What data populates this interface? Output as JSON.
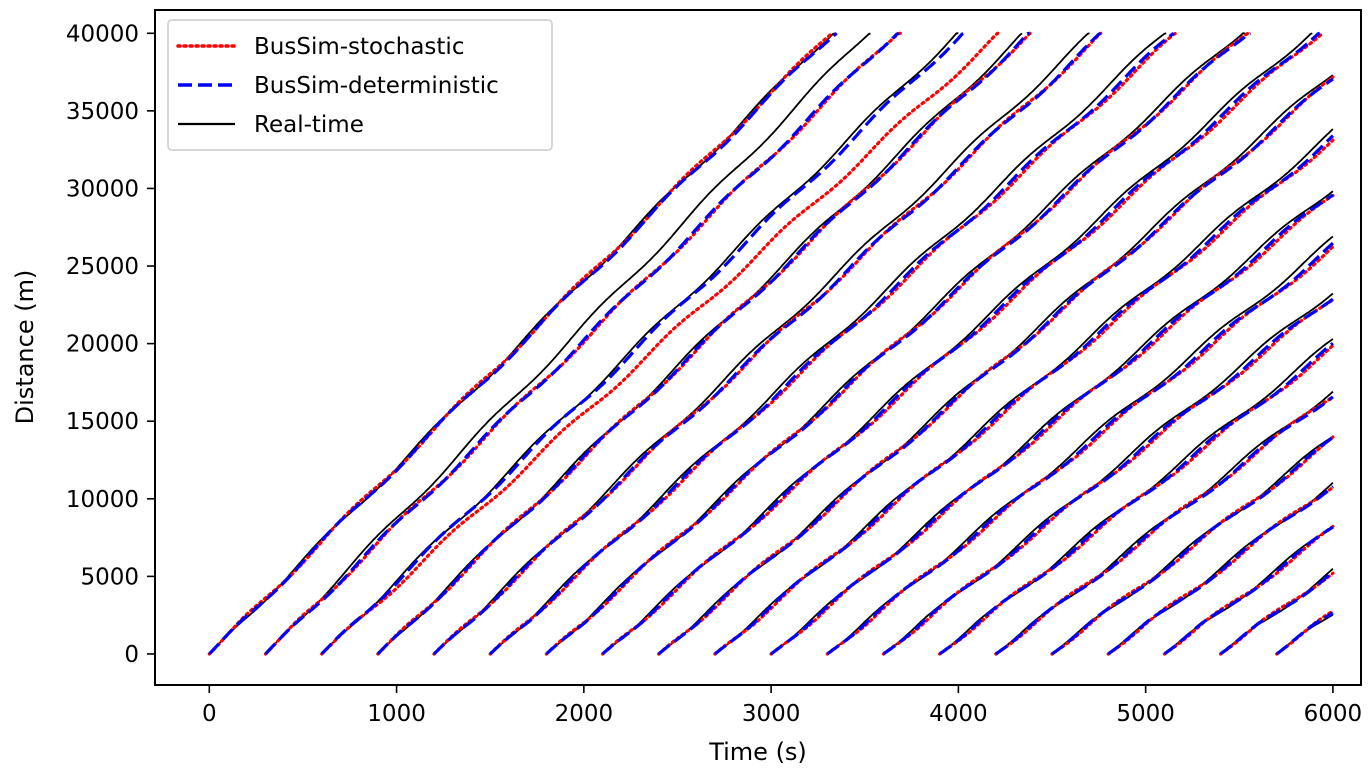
{
  "chart_data": {
    "type": "line",
    "xlabel": "Time (s)",
    "ylabel": "Distance (m)",
    "xlim": [
      -290,
      6150
    ],
    "ylim": [
      -2000,
      41500
    ],
    "x_ticks": [
      0,
      1000,
      2000,
      3000,
      4000,
      5000,
      6000
    ],
    "x_tick_labels": [
      "0",
      "1000",
      "2000",
      "3000",
      "4000",
      "5000",
      "6000"
    ],
    "y_ticks": [
      0,
      5000,
      10000,
      15000,
      20000,
      25000,
      30000,
      35000,
      40000
    ],
    "y_tick_labels": [
      "0",
      "5000",
      "10000",
      "15000",
      "20000",
      "25000",
      "30000",
      "35000",
      "40000"
    ],
    "grid": false,
    "legend_position": "top-left",
    "series": [
      {
        "name": "BusSim-stochastic",
        "color": "#ff0000",
        "style": "dotted",
        "description": "simulated bus trajectories, one line per departure",
        "trips": [
          {
            "start": 0,
            "speed": 12.05
          },
          {
            "start": 300,
            "speed": 11.88
          },
          {
            "start": 600,
            "speed": 11.05
          },
          {
            "start": 900,
            "speed": 11.5
          },
          {
            "start": 1200,
            "speed": 11.2
          },
          {
            "start": 1500,
            "speed": 10.9
          },
          {
            "start": 1800,
            "speed": 10.7
          },
          {
            "start": 2100,
            "speed": 10.45
          },
          {
            "start": 2400,
            "speed": 10.3
          },
          {
            "start": 2700,
            "speed": 10.05
          },
          {
            "start": 3000,
            "speed": 9.85
          },
          {
            "start": 3300,
            "speed": 9.7
          },
          {
            "start": 3600,
            "speed": 9.55
          },
          {
            "start": 3900,
            "speed": 9.4
          },
          {
            "start": 4200,
            "speed": 9.3
          },
          {
            "start": 4500,
            "speed": 9.2
          },
          {
            "start": 4800,
            "speed": 9.1
          },
          {
            "start": 5100,
            "speed": 8.95
          },
          {
            "start": 5400,
            "speed": 8.9
          },
          {
            "start": 5700,
            "speed": 8.9
          }
        ]
      },
      {
        "name": "BusSim-deterministic",
        "color": "#0000ff",
        "style": "dashed",
        "description": "simulated bus trajectories, one line per departure",
        "trips": [
          {
            "start": 0,
            "speed": 12.0
          },
          {
            "start": 300,
            "speed": 11.9
          },
          {
            "start": 600,
            "speed": 11.7
          },
          {
            "start": 900,
            "speed": 11.5
          },
          {
            "start": 1200,
            "speed": 11.2
          },
          {
            "start": 1500,
            "speed": 10.95
          },
          {
            "start": 1800,
            "speed": 10.7
          },
          {
            "start": 2100,
            "speed": 10.5
          },
          {
            "start": 2400,
            "speed": 10.3
          },
          {
            "start": 2700,
            "speed": 10.1
          },
          {
            "start": 3000,
            "speed": 9.9
          },
          {
            "start": 3300,
            "speed": 9.75
          },
          {
            "start": 3600,
            "speed": 9.6
          },
          {
            "start": 3900,
            "speed": 9.45
          },
          {
            "start": 4200,
            "speed": 9.3
          },
          {
            "start": 4500,
            "speed": 9.2
          },
          {
            "start": 4800,
            "speed": 9.1
          },
          {
            "start": 5100,
            "speed": 9.0
          },
          {
            "start": 5400,
            "speed": 8.9
          },
          {
            "start": 5700,
            "speed": 8.9
          }
        ]
      },
      {
        "name": "Real-time",
        "color": "#000000",
        "style": "solid",
        "description": "observed bus trajectories, one line per departure",
        "trips": [
          {
            "start": 0,
            "speed": 12.05
          },
          {
            "start": 300,
            "speed": 12.45
          },
          {
            "start": 600,
            "speed": 11.8
          },
          {
            "start": 900,
            "speed": 11.6
          },
          {
            "start": 1200,
            "speed": 11.4
          },
          {
            "start": 1500,
            "speed": 11.1
          },
          {
            "start": 1800,
            "speed": 10.8
          },
          {
            "start": 2100,
            "speed": 10.6
          },
          {
            "start": 2400,
            "speed": 10.4
          },
          {
            "start": 2700,
            "speed": 10.2
          },
          {
            "start": 3000,
            "speed": 10.0
          },
          {
            "start": 3300,
            "speed": 9.9
          },
          {
            "start": 3600,
            "speed": 9.75
          },
          {
            "start": 3900,
            "speed": 9.6
          },
          {
            "start": 4200,
            "speed": 9.45
          },
          {
            "start": 4500,
            "speed": 9.3
          },
          {
            "start": 4800,
            "speed": 9.2
          },
          {
            "start": 5100,
            "speed": 9.1
          },
          {
            "start": 5400,
            "speed": 9.0
          },
          {
            "start": 5700,
            "speed": 8.9
          }
        ]
      }
    ]
  }
}
